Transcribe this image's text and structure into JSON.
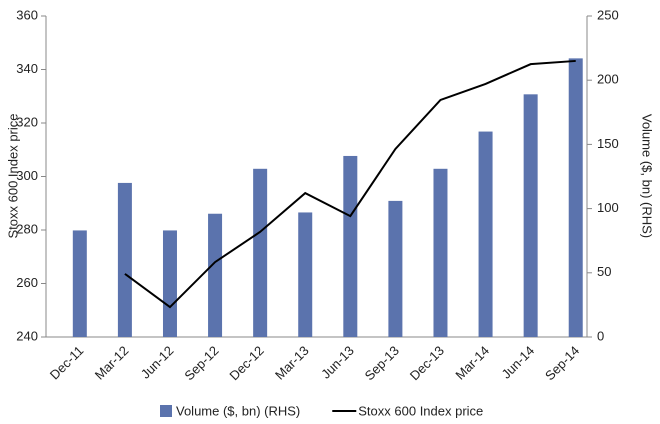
{
  "chart_data": {
    "type": "bar_line",
    "categories": [
      "Dec-11",
      "Mar-12",
      "Jun-12",
      "Sep-12",
      "Dec-12",
      "Mar-13",
      "Jun-13",
      "Sep-13",
      "Dec-13",
      "Mar-14",
      "Jun-14",
      "Sep-14"
    ],
    "series": [
      {
        "name": "Volume ($, bn) (RHS)",
        "type": "bar",
        "axis": "y2",
        "color": "#5b73ad",
        "values": [
          83,
          120,
          83,
          96,
          131,
          97,
          141,
          106,
          131,
          160,
          189,
          217
        ]
      },
      {
        "name": "Stoxx 600 Index price",
        "type": "line",
        "color": "#000000",
        "values": [
          null,
          263.6,
          251.2,
          268,
          279.3,
          293.8,
          285.2,
          310.3,
          328.6,
          334.6,
          342,
          343.2
        ]
      }
    ],
    "ylabel": "Stoxx 600 Index price",
    "y2label": "Volume ($, bn) (RHS)",
    "ylim": [
      240,
      360
    ],
    "yticks": [
      240,
      260,
      280,
      300,
      320,
      340,
      360
    ],
    "y2lim": [
      0,
      250
    ],
    "y2ticks": [
      0,
      50,
      100,
      150,
      200,
      250
    ],
    "legend": "bottom"
  }
}
